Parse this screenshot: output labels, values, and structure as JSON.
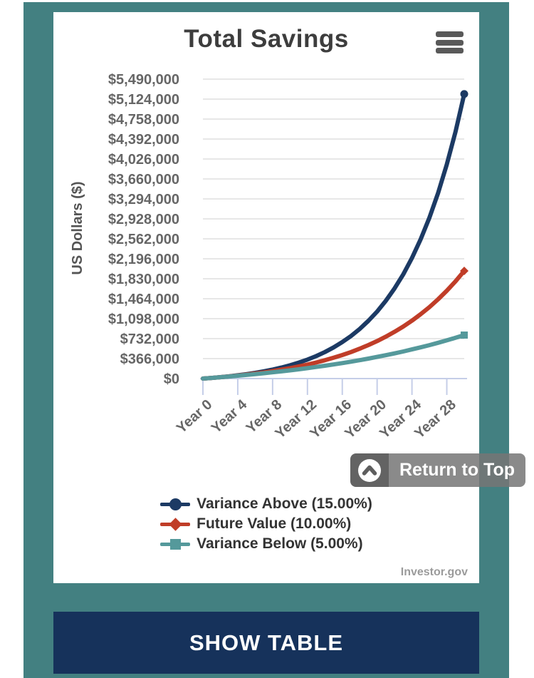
{
  "page": {
    "panel_color": "#438081",
    "accent_navy": "#16325b",
    "grid_color": "#e7e7e7",
    "axis_color": "#c5cee8"
  },
  "card": {
    "title": "Total Savings",
    "attribution": "Investor.gov"
  },
  "chart_data": {
    "type": "line",
    "title": "Total Savings",
    "xlabel": "",
    "ylabel": "US Dollars ($)",
    "ylim": [
      0,
      5490000
    ],
    "y_tick_step": 366000,
    "grid": true,
    "legend_position": "bottom",
    "y_tick_labels": [
      "$0",
      "$366,000",
      "$732,000",
      "$1,098,000",
      "$1,464,000",
      "$1,830,000",
      "$2,196,000",
      "$2,562,000",
      "$2,928,000",
      "$3,294,000",
      "$3,660,000",
      "$4,026,000",
      "$4,392,000",
      "$4,758,000",
      "$5,124,000",
      "$5,490,000"
    ],
    "x_tick_labels": [
      "Year 0",
      "Year 4",
      "Year 8",
      "Year 12",
      "Year 16",
      "Year 20",
      "Year 24",
      "Year 28"
    ],
    "x_years": [
      0,
      1,
      2,
      3,
      4,
      5,
      6,
      7,
      8,
      9,
      10,
      11,
      12,
      13,
      14,
      15,
      16,
      17,
      18,
      19,
      20,
      21,
      22,
      23,
      24,
      25,
      26,
      27,
      28,
      29,
      30
    ],
    "series": [
      {
        "name": "Variance Above (15.00%)",
        "color": "#1c3a64",
        "marker": "circle",
        "values": [
          0,
          12000,
          25800,
          41670,
          59921,
          80909,
          105045,
          132802,
          164722,
          201430,
          243645,
          292191,
          348020,
          412223,
          486057,
          570965,
          668610,
          780901,
          910036,
          1058542,
          1229323,
          1425722,
          1651580,
          1911317,
          2210014,
          2553517,
          2948544,
          3402826,
          3925249,
          4526037,
          5216942
        ]
      },
      {
        "name": "Future Value (10.00%)",
        "color": "#c03d28",
        "marker": "diamond",
        "values": [
          0,
          12000,
          25200,
          39720,
          55692,
          73261,
          92587,
          113846,
          137231,
          162954,
          191249,
          222374,
          256611,
          294273,
          335700,
          381270,
          431397,
          486536,
          547190,
          613909,
          687300,
          768030,
          856833,
          954516,
          1061968,
          1180165,
          1310181,
          1453199,
          1610519,
          1783571,
          1973928
        ]
      },
      {
        "name": "Variance Below (5.00%)",
        "color": "#55999b",
        "marker": "square",
        "values": [
          0,
          12000,
          24600,
          37830,
          51722,
          66308,
          81623,
          97704,
          114589,
          132319,
          150935,
          170481,
          191006,
          212556,
          235184,
          258943,
          283890,
          310084,
          337589,
          366468,
          396791,
          428631,
          462063,
          497166,
          534024,
          572725,
          613361,
          656030,
          700831,
          747873,
          797266
        ]
      }
    ]
  },
  "return_to_top": {
    "label": "Return to Top",
    "icon": "chevron-up-circle-icon"
  },
  "show_table": {
    "label": "SHOW TABLE"
  }
}
